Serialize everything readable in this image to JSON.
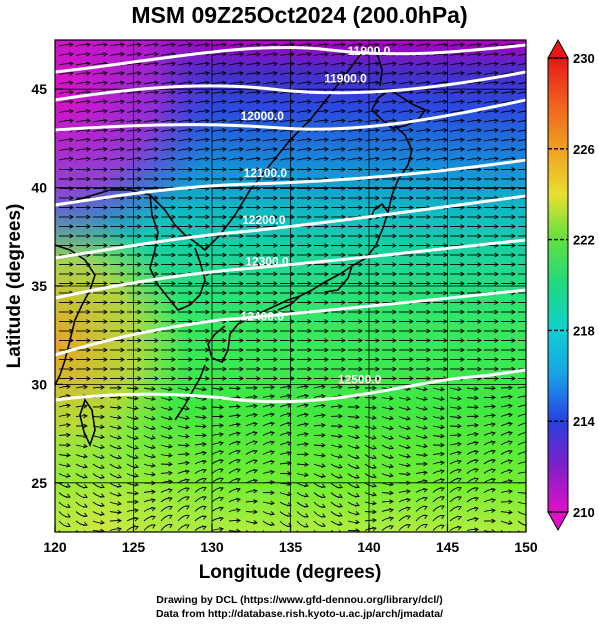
{
  "title": "MSM 09Z25Oct2024 (200.0hPa)",
  "credits": [
    "Drawing by DCL (https://www.gfd-dennou.org/library/dcl/)",
    "Data from http://database.rish.kyoto-u.ac.jp/arch/jmadata/"
  ],
  "axes": {
    "xlabel": "Longitude (degrees)",
    "ylabel": "Latitude  (degrees)",
    "xlim": [
      120,
      150
    ],
    "ylim": [
      22.5,
      47.5
    ],
    "xticks": [
      "120",
      "125",
      "130",
      "135",
      "140",
      "145",
      "150"
    ],
    "yticks": [
      "25",
      "30",
      "35",
      "40",
      "45"
    ]
  },
  "colorbar": {
    "range": [
      210,
      230
    ],
    "tick_labels": [
      "230",
      "226",
      "222",
      "218",
      "214",
      "210"
    ]
  },
  "contours": {
    "color": "#ffffff",
    "labels": [
      {
        "text": "11900.0",
        "lon": 140.0,
        "lat": 47.0
      },
      {
        "text": "11900.0",
        "lon": 138.5,
        "lat": 45.6
      },
      {
        "text": "12000.0",
        "lon": 133.2,
        "lat": 43.7
      },
      {
        "text": "12100.0",
        "lon": 133.4,
        "lat": 40.8
      },
      {
        "text": "12200.0",
        "lon": 133.3,
        "lat": 38.4
      },
      {
        "text": "12300.0",
        "lon": 133.5,
        "lat": 36.3
      },
      {
        "text": "12400.0",
        "lon": 133.2,
        "lat": 33.5
      },
      {
        "text": "12500.0",
        "lon": 139.4,
        "lat": 30.3
      }
    ]
  }
}
